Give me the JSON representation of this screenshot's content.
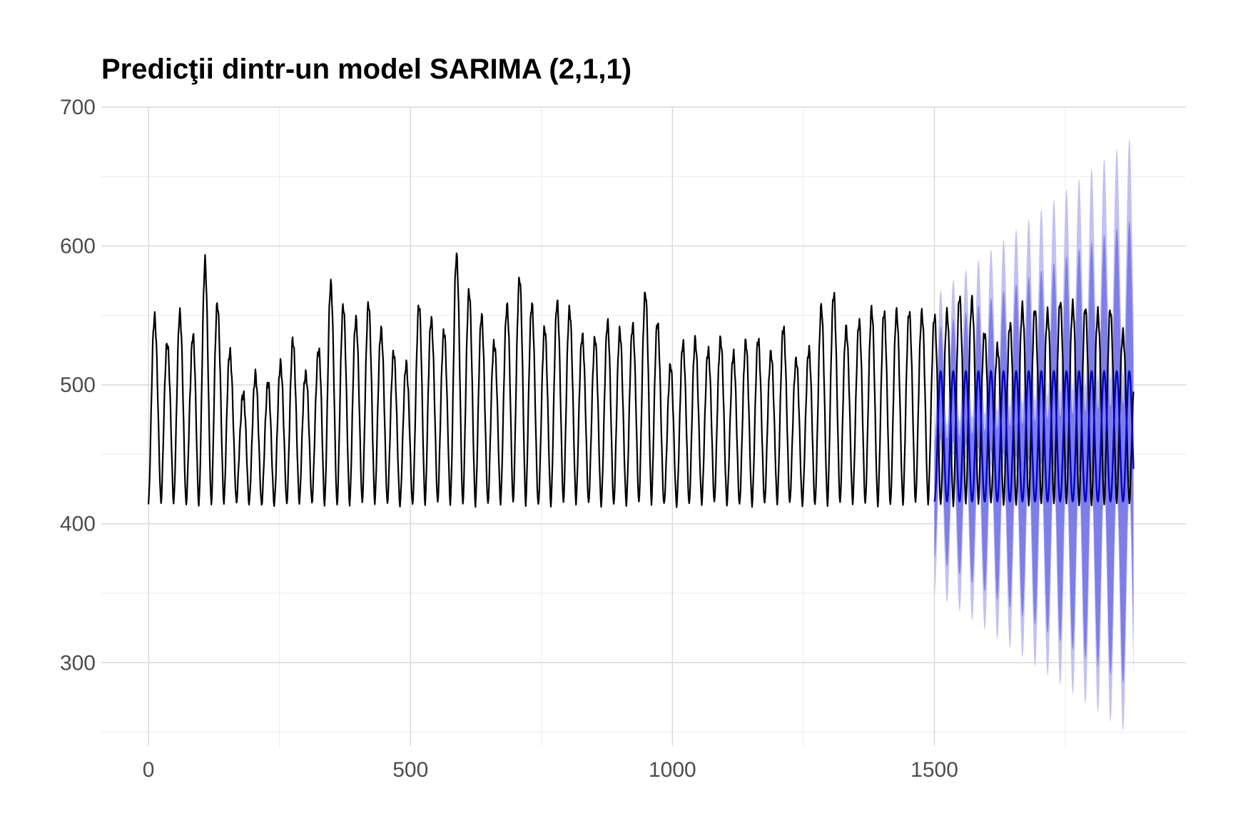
{
  "chart_data": {
    "type": "line",
    "title": "Predicţii dintr-un model SARIMA (2,1,1)",
    "xlabel": "",
    "ylabel": "",
    "xlim": [
      -90,
      1980
    ],
    "ylim": [
      240,
      700
    ],
    "x_ticks": [
      0,
      500,
      1000,
      1500
    ],
    "x_tick_labels": [
      "0",
      "500",
      "1000",
      "1500"
    ],
    "y_ticks": [
      300,
      400,
      500,
      600,
      700
    ],
    "y_tick_labels": [
      "300",
      "400",
      "500",
      "600",
      "700"
    ],
    "grid": true,
    "legend": "none",
    "period": 24,
    "observed": {
      "color": "#000000",
      "x_start": 0,
      "x_end": 1880,
      "baseline": 420,
      "cycle_peaks": [
        {
          "x": 8,
          "y": 553
        },
        {
          "x": 40,
          "y": 530
        },
        {
          "x": 58,
          "y": 555
        },
        {
          "x": 80,
          "y": 523
        },
        {
          "x": 108,
          "y": 587
        },
        {
          "x": 130,
          "y": 560
        },
        {
          "x": 148,
          "y": 540
        },
        {
          "x": 175,
          "y": 492
        },
        {
          "x": 200,
          "y": 508
        },
        {
          "x": 225,
          "y": 497
        },
        {
          "x": 250,
          "y": 512
        },
        {
          "x": 275,
          "y": 535
        },
        {
          "x": 300,
          "y": 510
        },
        {
          "x": 325,
          "y": 525
        },
        {
          "x": 345,
          "y": 572
        },
        {
          "x": 370,
          "y": 555
        },
        {
          "x": 395,
          "y": 547
        },
        {
          "x": 420,
          "y": 562
        },
        {
          "x": 445,
          "y": 540
        },
        {
          "x": 470,
          "y": 520
        },
        {
          "x": 495,
          "y": 511
        },
        {
          "x": 520,
          "y": 565
        },
        {
          "x": 545,
          "y": 545
        },
        {
          "x": 570,
          "y": 540
        },
        {
          "x": 585,
          "y": 596
        },
        {
          "x": 610,
          "y": 566
        },
        {
          "x": 635,
          "y": 548
        },
        {
          "x": 660,
          "y": 530
        },
        {
          "x": 680,
          "y": 555
        },
        {
          "x": 700,
          "y": 576
        },
        {
          "x": 720,
          "y": 581
        },
        {
          "x": 745,
          "y": 528
        },
        {
          "x": 770,
          "y": 551
        },
        {
          "x": 790,
          "y": 567
        },
        {
          "x": 810,
          "y": 552
        },
        {
          "x": 835,
          "y": 532
        },
        {
          "x": 860,
          "y": 533
        },
        {
          "x": 885,
          "y": 547
        },
        {
          "x": 910,
          "y": 530
        },
        {
          "x": 940,
          "y": 560
        },
        {
          "x": 960,
          "y": 582
        },
        {
          "x": 985,
          "y": 505
        },
        {
          "x": 1010,
          "y": 520
        },
        {
          "x": 1035,
          "y": 538
        },
        {
          "x": 1060,
          "y": 521
        },
        {
          "x": 1085,
          "y": 541
        },
        {
          "x": 1110,
          "y": 519
        },
        {
          "x": 1135,
          "y": 527
        },
        {
          "x": 1160,
          "y": 533
        },
        {
          "x": 1185,
          "y": 522
        },
        {
          "x": 1210,
          "y": 546
        },
        {
          "x": 1235,
          "y": 518
        },
        {
          "x": 1260,
          "y": 522
        },
        {
          "x": 1285,
          "y": 555
        },
        {
          "x": 1310,
          "y": 567
        },
        {
          "x": 1335,
          "y": 540
        },
        {
          "x": 1360,
          "y": 548
        },
        {
          "x": 1385,
          "y": 554
        },
        {
          "x": 1410,
          "y": 548
        },
        {
          "x": 1435,
          "y": 553
        },
        {
          "x": 1460,
          "y": 555
        },
        {
          "x": 1485,
          "y": 554
        },
        {
          "x": 1510,
          "y": 546
        },
        {
          "x": 1535,
          "y": 552
        },
        {
          "x": 1560,
          "y": 570
        },
        {
          "x": 1585,
          "y": 553
        },
        {
          "x": 1610,
          "y": 524
        },
        {
          "x": 1635,
          "y": 535
        },
        {
          "x": 1660,
          "y": 553
        },
        {
          "x": 1685,
          "y": 555
        },
        {
          "x": 1710,
          "y": 552
        },
        {
          "x": 1735,
          "y": 563
        },
        {
          "x": 1760,
          "y": 558
        },
        {
          "x": 1785,
          "y": 553
        },
        {
          "x": 1810,
          "y": 550
        },
        {
          "x": 1835,
          "y": 556
        },
        {
          "x": 1860,
          "y": 540
        },
        {
          "x": 1880,
          "y": 523
        }
      ]
    },
    "forecast": {
      "color": "#0000cc",
      "x_start": 1500,
      "x_end": 1880,
      "min": 416,
      "max": 510,
      "pi80_color": "#7e7ee8",
      "pi95_color": "#c1c1f2",
      "pi80_upper_max_start": 540,
      "pi80_upper_max_end": 620,
      "pi80_lower_min_start": 375,
      "pi80_lower_min_end": 280,
      "pi95_upper_max_start": 565,
      "pi95_upper_max_end": 680,
      "pi95_lower_min_start": 350,
      "pi95_lower_min_end": 245
    }
  }
}
